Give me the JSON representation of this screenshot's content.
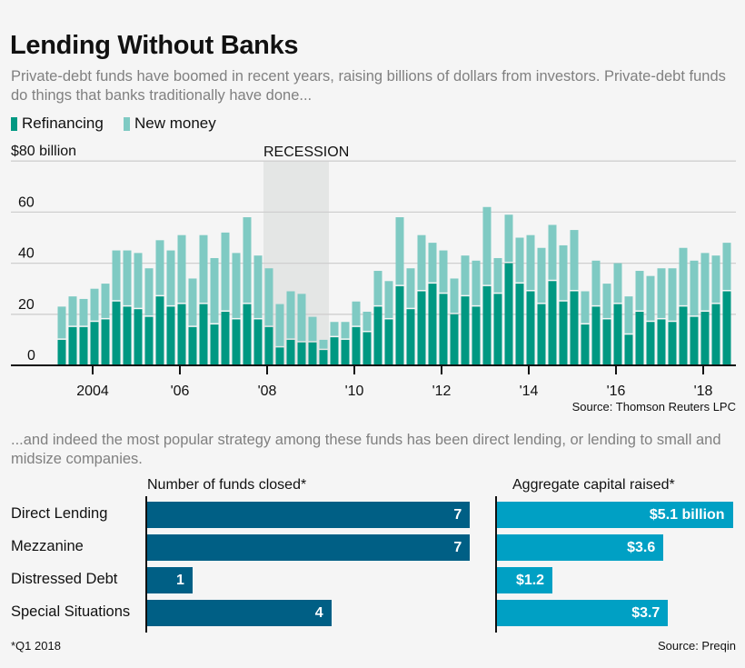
{
  "header": {
    "title": "Lending Without Banks",
    "subtitle": "Private-debt funds have boomed in recent years, raising billions of dollars from investors. Private-debt funds do things that banks traditionally have done..."
  },
  "colors": {
    "refinancing": "#009882",
    "new_money": "#7fcac3",
    "recession": "#e4e6e5",
    "funds_closed": "#005f85",
    "capital_raised": "#00a0c4"
  },
  "chart_data": [
    {
      "type": "bar",
      "stacked": true,
      "xlabel": "",
      "ylabel": "",
      "y_unit_label": "$80 billion",
      "ylim": [
        0,
        80
      ],
      "yticks": [
        0,
        20,
        40,
        60,
        80
      ],
      "ytick_labels": [
        "0",
        "20",
        "40",
        "60",
        "$80 billion"
      ],
      "xtick_labels": [
        "2004",
        "'06",
        "'08",
        "'10",
        "'12",
        "'14",
        "'16",
        "'18"
      ],
      "grid": true,
      "legend": "top-left",
      "annotation": {
        "label": "RECESSION",
        "from": "2008 Q1",
        "to": "2009 Q2"
      },
      "x": [
        "2003 Q2",
        "2003 Q3",
        "2003 Q4",
        "2004 Q1",
        "2004 Q2",
        "2004 Q3",
        "2004 Q4",
        "2005 Q1",
        "2005 Q2",
        "2005 Q3",
        "2005 Q4",
        "2006 Q1",
        "2006 Q2",
        "2006 Q3",
        "2006 Q4",
        "2007 Q1",
        "2007 Q2",
        "2007 Q3",
        "2007 Q4",
        "2008 Q1",
        "2008 Q2",
        "2008 Q3",
        "2008 Q4",
        "2009 Q1",
        "2009 Q2",
        "2009 Q3",
        "2009 Q4",
        "2010 Q1",
        "2010 Q2",
        "2010 Q3",
        "2010 Q4",
        "2011 Q1",
        "2011 Q2",
        "2011 Q3",
        "2011 Q4",
        "2012 Q1",
        "2012 Q2",
        "2012 Q3",
        "2012 Q4",
        "2013 Q1",
        "2013 Q2",
        "2013 Q3",
        "2013 Q4",
        "2014 Q1",
        "2014 Q2",
        "2014 Q3",
        "2014 Q4",
        "2015 Q1",
        "2015 Q2",
        "2015 Q3",
        "2015 Q4",
        "2016 Q1",
        "2016 Q2",
        "2016 Q3",
        "2016 Q4",
        "2017 Q1",
        "2017 Q2",
        "2017 Q3",
        "2017 Q4",
        "2018 Q1",
        "2018 Q2",
        "2018 Q3"
      ],
      "series": [
        {
          "name": "Refinancing",
          "values": [
            10,
            15,
            15,
            17,
            18,
            25,
            23,
            22,
            19,
            27,
            23,
            24,
            15,
            24,
            16,
            21,
            18,
            24,
            18,
            15,
            7,
            10,
            9,
            9,
            6,
            11,
            10,
            15,
            13,
            23,
            18,
            31,
            22,
            29,
            32,
            28,
            20,
            27,
            23,
            31,
            28,
            40,
            32,
            29,
            24,
            33,
            25,
            29,
            16,
            23,
            18,
            24,
            12,
            21,
            17,
            18,
            17,
            23,
            19,
            21,
            24,
            29
          ]
        },
        {
          "name": "New money",
          "values": [
            13,
            12,
            11,
            13,
            14,
            20,
            22,
            22,
            19,
            22,
            22,
            27,
            19,
            27,
            26,
            31,
            26,
            34,
            25,
            23,
            17,
            19,
            19,
            10,
            4,
            6,
            7,
            10,
            8,
            14,
            15,
            27,
            16,
            22,
            16,
            17,
            14,
            16,
            18,
            31,
            14,
            19,
            18,
            22,
            22,
            22,
            22,
            24,
            13,
            18,
            14,
            16,
            15,
            16,
            18,
            20,
            21,
            23,
            22,
            23,
            19,
            19
          ]
        }
      ],
      "source": "Source: Thomson Reuters LPC"
    },
    {
      "type": "bar",
      "orientation": "horizontal",
      "title": "Number of funds closed*",
      "categories": [
        "Direct Lending",
        "Mezzanine",
        "Distressed Debt",
        "Special Situations"
      ],
      "values": [
        7,
        7,
        1,
        4
      ],
      "data_labels": [
        "7",
        "7",
        "1",
        "4"
      ]
    },
    {
      "type": "bar",
      "orientation": "horizontal",
      "title": "Aggregate capital raised*",
      "categories": [
        "Direct Lending",
        "Mezzanine",
        "Distressed Debt",
        "Special Situations"
      ],
      "values": [
        5.1,
        3.6,
        1.2,
        3.7
      ],
      "data_labels": [
        "$5.1 billion",
        "$3.6",
        "$1.2",
        "$3.7"
      ]
    }
  ],
  "section2": {
    "subtitle": "...and indeed the most popular strategy among these funds has been direct lending, or lending to small and midsize companies.",
    "footnote": "*Q1 2018",
    "source": "Source: Preqin"
  }
}
